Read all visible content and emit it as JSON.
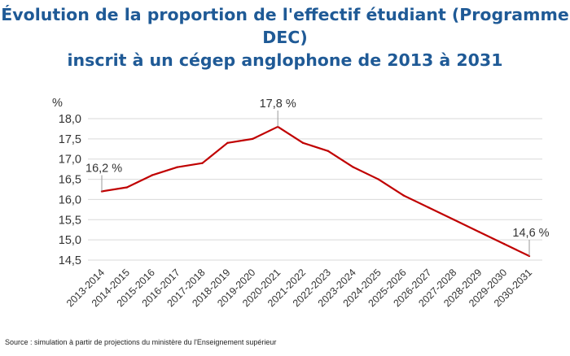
{
  "chart_data": {
    "type": "line",
    "title": "Évolution de la proportion de l'effectif étudiant (Programme DEC) inscrit à un cégep anglophone de 2013 à 2031",
    "title_lines": [
      "Évolution de la proportion de l'effectif étudiant (Programme DEC)",
      "inscrit à un cégep anglophone de 2013 à 2031"
    ],
    "ylabel": "%",
    "xlabel": "",
    "ylim": [
      14.5,
      18.0
    ],
    "yticks": [
      "14,5",
      "15,0",
      "15,5",
      "16,0",
      "16,5",
      "17,0",
      "17,5",
      "18,0"
    ],
    "ytick_values": [
      14.5,
      15.0,
      15.5,
      16.0,
      16.5,
      17.0,
      17.5,
      18.0
    ],
    "grid": true,
    "categories": [
      "2013-2014",
      "2014-2015",
      "2015-2016",
      "2016-2017",
      "2017-2018",
      "2018-2019",
      "2019-2020",
      "2020-2021",
      "2021-2022",
      "2022-2023",
      "2023-2024",
      "2024-2025",
      "2025-2026",
      "2026-2027",
      "2027-2028",
      "2028-2029",
      "2029-2030",
      "2030-2031"
    ],
    "series": [
      {
        "values": [
          16.2,
          16.3,
          16.6,
          16.8,
          16.9,
          17.4,
          17.5,
          17.8,
          17.4,
          17.2,
          16.8,
          16.5,
          16.1,
          15.8,
          15.5,
          15.2,
          14.9,
          14.6
        ],
        "color": "#c00000"
      }
    ],
    "annotations": [
      {
        "index": 0,
        "text": "16,2 %"
      },
      {
        "index": 7,
        "text": "17,8 %"
      },
      {
        "index": 17,
        "text": "14,6 %"
      }
    ]
  },
  "source": "Source : simulation à partir de projections du ministère du l'Enseignement supérieur"
}
